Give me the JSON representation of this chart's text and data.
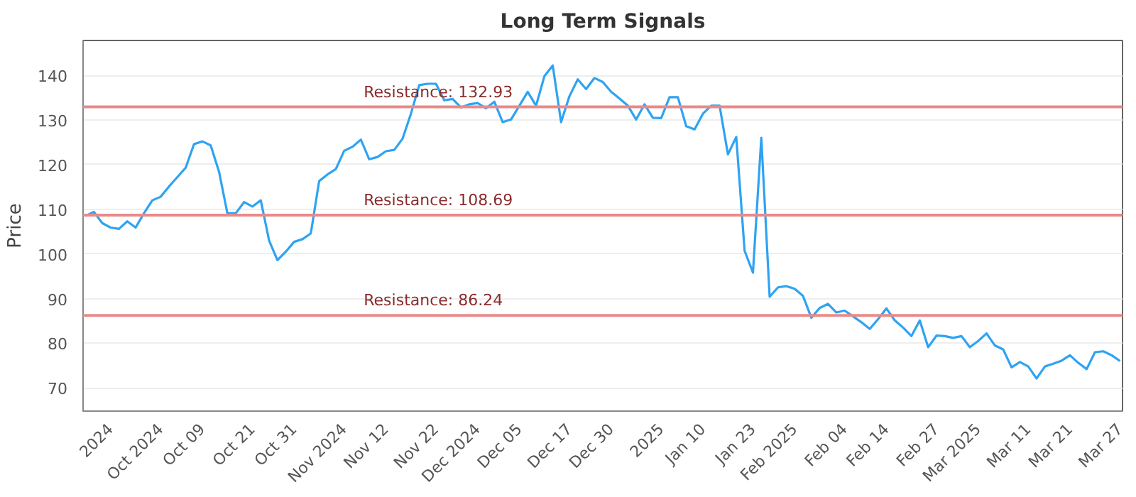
{
  "chart_data": {
    "type": "line",
    "title": "Long Term Signals",
    "ylabel": "Price",
    "categories": [
      null,
      null,
      null,
      "2024",
      null,
      null,
      null,
      null,
      null,
      "Oct 2024",
      null,
      null,
      null,
      null,
      "Oct 09",
      null,
      null,
      null,
      null,
      null,
      "Oct 21",
      null,
      null,
      null,
      null,
      "Oct 31",
      null,
      null,
      null,
      null,
      null,
      "Nov 2024",
      null,
      null,
      null,
      null,
      "Nov 12",
      null,
      null,
      null,
      null,
      null,
      "Nov 22",
      null,
      null,
      null,
      null,
      "Dec 2024",
      null,
      null,
      null,
      null,
      "Dec 05",
      null,
      null,
      null,
      null,
      null,
      "Dec 17",
      null,
      null,
      null,
      null,
      "Dec 30",
      null,
      null,
      null,
      null,
      null,
      "2025",
      null,
      null,
      null,
      null,
      "Jan 10",
      null,
      null,
      null,
      null,
      null,
      "Jan 23",
      null,
      null,
      null,
      null,
      "Feb 2025",
      null,
      null,
      null,
      null,
      null,
      "Feb 04",
      null,
      null,
      null,
      null,
      "Feb 14",
      null,
      null,
      null,
      null,
      null,
      "Feb 27",
      null,
      null,
      null,
      null,
      "Mar 2025",
      null,
      null,
      null,
      null,
      null,
      "Mar 11",
      null,
      null,
      null,
      null,
      "Mar 21",
      null,
      null,
      null,
      null,
      null,
      "Mar 27"
    ],
    "series": [
      {
        "color": "#2ea3f2",
        "values": [
          108.5,
          109.4,
          106.9,
          105.9,
          105.6,
          107.3,
          105.9,
          109.1,
          112.0,
          112.8,
          115.1,
          117.2,
          119.3,
          124.6,
          125.2,
          124.3,
          118.4,
          109.1,
          109.1,
          111.6,
          110.6,
          112.0,
          103.0,
          98.6,
          100.5,
          102.7,
          103.3,
          104.6,
          116.3,
          117.8,
          119.0,
          123.1,
          124.0,
          125.6,
          121.2,
          121.7,
          123.0,
          123.3,
          125.8,
          131.4,
          137.8,
          138.1,
          138.1,
          134.4,
          134.7,
          132.8,
          133.5,
          133.8,
          132.6,
          134.1,
          129.5,
          130.1,
          133.2,
          136.3,
          133.2,
          139.8,
          142.2,
          129.5,
          135.3,
          139.1,
          136.9,
          139.4,
          138.5,
          136.3,
          134.8,
          133.2,
          130.1,
          133.5,
          130.5,
          130.4,
          135.1,
          135.1,
          128.6,
          127.9,
          131.4,
          133.2,
          133.2,
          122.3,
          126.2,
          100.7,
          95.8,
          126.0,
          90.4,
          92.5,
          92.8,
          92.2,
          90.6,
          85.7,
          87.9,
          88.8,
          86.9,
          87.3,
          86.0,
          84.7,
          83.2,
          85.4,
          87.8,
          85.1,
          83.5,
          81.6,
          85.1,
          79.1,
          81.7,
          81.6,
          81.2,
          81.6,
          79.1,
          80.5,
          82.2,
          79.5,
          78.6,
          74.6,
          75.8,
          74.8,
          72.1,
          74.8,
          75.4,
          76.1,
          77.3,
          75.6,
          74.2,
          78.0,
          78.2,
          77.3,
          76.0
        ]
      }
    ],
    "ylim": [
      64.8,
      147.8
    ],
    "yticks": [
      70,
      80,
      90,
      100,
      110,
      120,
      130,
      140
    ],
    "ref_lines": [
      {
        "axis": "y",
        "value": 132.93,
        "label": "Resistance: 132.93",
        "color": "#e88a8a"
      },
      {
        "axis": "y",
        "value": 108.69,
        "label": "Resistance: 108.69",
        "color": "#e88a8a"
      },
      {
        "axis": "y",
        "value": 86.24,
        "label": "Resistance: 86.24",
        "color": "#e88a8a"
      }
    ],
    "grid": "y",
    "marker": "none",
    "line_style": "solid"
  }
}
